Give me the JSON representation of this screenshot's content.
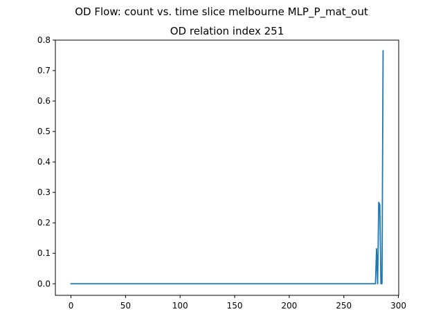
{
  "chart_data": {
    "type": "line",
    "suptitle": "OD Flow: count vs. time slice melbourne MLP_P_mat_out",
    "title": "OD relation index 251",
    "xlabel": "",
    "ylabel": "",
    "xlim": [
      -14.3,
      300.3
    ],
    "ylim": [
      -0.038,
      0.8
    ],
    "x_ticks": [
      "0",
      "50",
      "100",
      "150",
      "200",
      "250",
      "300"
    ],
    "y_ticks": [
      "0.0",
      "0.1",
      "0.2",
      "0.3",
      "0.4",
      "0.5",
      "0.6",
      "0.7",
      "0.8"
    ],
    "grid": false,
    "line_color": "#1f77b4",
    "series": [
      {
        "x": [
          0,
          279,
          280,
          281,
          282,
          283,
          284,
          285,
          286
        ],
        "values": [
          0.0,
          0.0,
          0.115,
          0.0,
          0.267,
          0.26,
          0.0,
          0.0,
          0.765
        ]
      }
    ]
  }
}
